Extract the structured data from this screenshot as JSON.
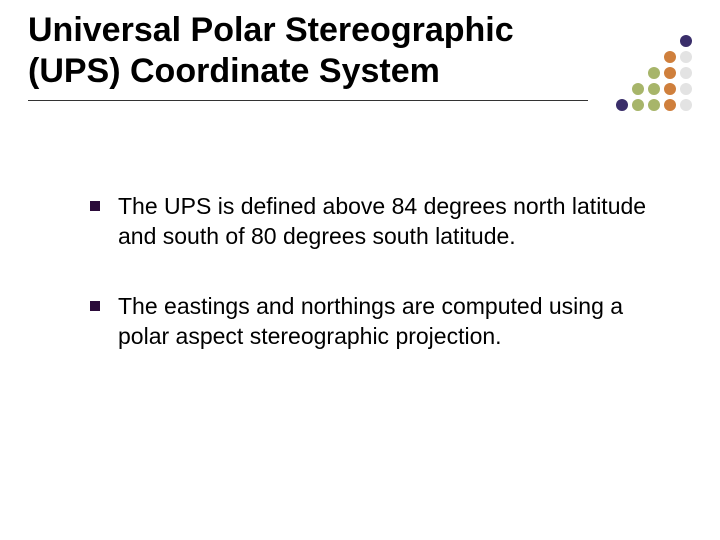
{
  "title": {
    "line1": "Universal Polar Stereographic",
    "line2": "(UPS) Coordinate System",
    "color": "#000000",
    "fontsize": 34,
    "underline_color": "#333333"
  },
  "bullets": [
    {
      "text": "The UPS is defined above 84 degrees north latitude and south of 80 degrees south latitude."
    },
    {
      "text": "The eastings and northings are computed using a polar aspect stereographic projection."
    }
  ],
  "bullet_style": {
    "marker_color": "#2b0b3a",
    "text_color": "#000000",
    "text_fontsize": 23
  },
  "decoration": {
    "type": "dot-grid-5x5-triangle",
    "rows": [
      {
        "count": 1,
        "colors": [
          "#3a2e6a"
        ]
      },
      {
        "count": 2,
        "colors": [
          "#cf7f3c",
          "#e3e3e3"
        ]
      },
      {
        "count": 3,
        "colors": [
          "#a7b56a",
          "#cf7f3c",
          "#e3e3e3"
        ]
      },
      {
        "count": 4,
        "colors": [
          "#a7b56a",
          "#a7b56a",
          "#cf7f3c",
          "#e3e3e3"
        ]
      },
      {
        "count": 5,
        "colors": [
          "#3a2e6a",
          "#a7b56a",
          "#a7b56a",
          "#cf7f3c",
          "#e3e3e3"
        ]
      }
    ],
    "dot_size": 12,
    "gap": 4
  },
  "background_color": "#ffffff"
}
